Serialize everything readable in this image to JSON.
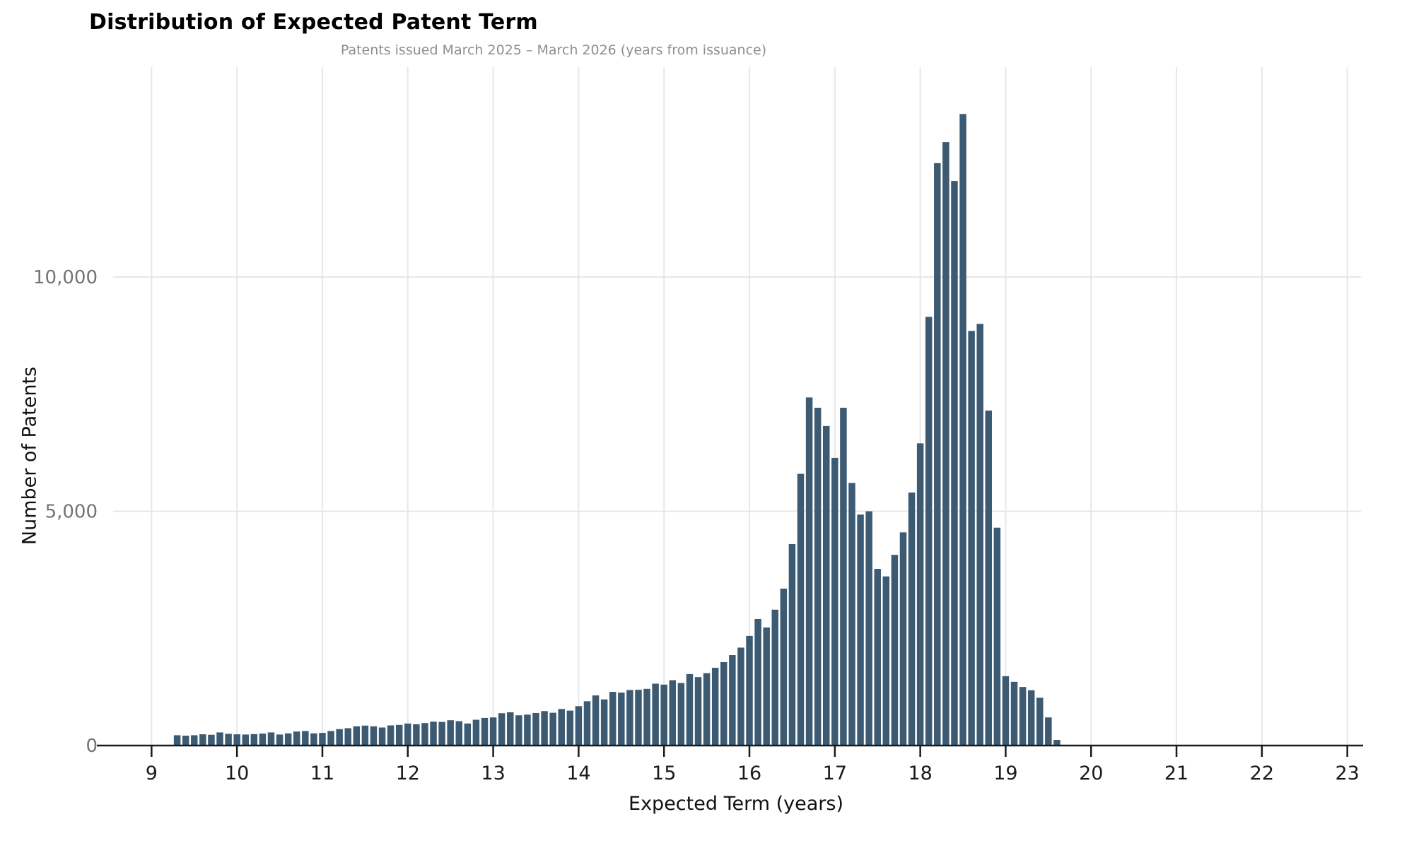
{
  "chart": {
    "title": "Distribution of Expected Patent Term",
    "subtitle": "Patents issued March 2025 – March 2026 (years from issuance)"
  },
  "chart_data": {
    "type": "bar",
    "subtype": "histogram",
    "title": "Distribution of Expected Patent Term",
    "subtitle": "Patents issued March 2025 – March 2026 (years from issuance)",
    "xlabel": "Expected Term (years)",
    "ylabel": "Number of Patents",
    "bin_start": 9.3,
    "bin_width": 0.1,
    "values": [
      220,
      210,
      220,
      240,
      230,
      280,
      250,
      240,
      235,
      245,
      255,
      280,
      235,
      260,
      300,
      310,
      260,
      270,
      310,
      350,
      370,
      410,
      425,
      410,
      385,
      430,
      440,
      470,
      455,
      480,
      510,
      505,
      540,
      520,
      470,
      550,
      590,
      600,
      690,
      710,
      645,
      660,
      695,
      735,
      700,
      780,
      745,
      840,
      945,
      1070,
      985,
      1145,
      1130,
      1185,
      1190,
      1210,
      1320,
      1300,
      1395,
      1335,
      1525,
      1460,
      1545,
      1660,
      1780,
      1930,
      2090,
      2340,
      2700,
      2520,
      2900,
      3350,
      4300,
      5800,
      7430,
      7210,
      6820,
      6140,
      7210,
      5605,
      4930,
      5000,
      3770,
      3610,
      4070,
      4550,
      5400,
      6450,
      9150,
      12430,
      12880,
      12050,
      13480,
      8850,
      9000,
      7150,
      4650,
      1480,
      1360,
      1250,
      1180,
      1020,
      600,
      120
    ],
    "x_ticks": [
      9,
      10,
      11,
      12,
      13,
      14,
      15,
      16,
      17,
      18,
      19,
      20,
      21,
      22,
      23
    ],
    "y_ticks": [
      0,
      5000,
      10000
    ],
    "y_tick_labels": [
      "0",
      "5,000",
      "10,000"
    ],
    "xlim": [
      8.55,
      23.16
    ],
    "ylim": [
      0,
      14480
    ],
    "grid": true,
    "legend": "none",
    "bar_color": "#3d5a73",
    "grid_color": "#e7e7e7",
    "axis_color": "#1a1a1a",
    "x_tick_color": "#1a1a1a",
    "y_tick_color": "#737373",
    "title_color": "#000000",
    "subtitle_color": "#8e8e8e"
  }
}
